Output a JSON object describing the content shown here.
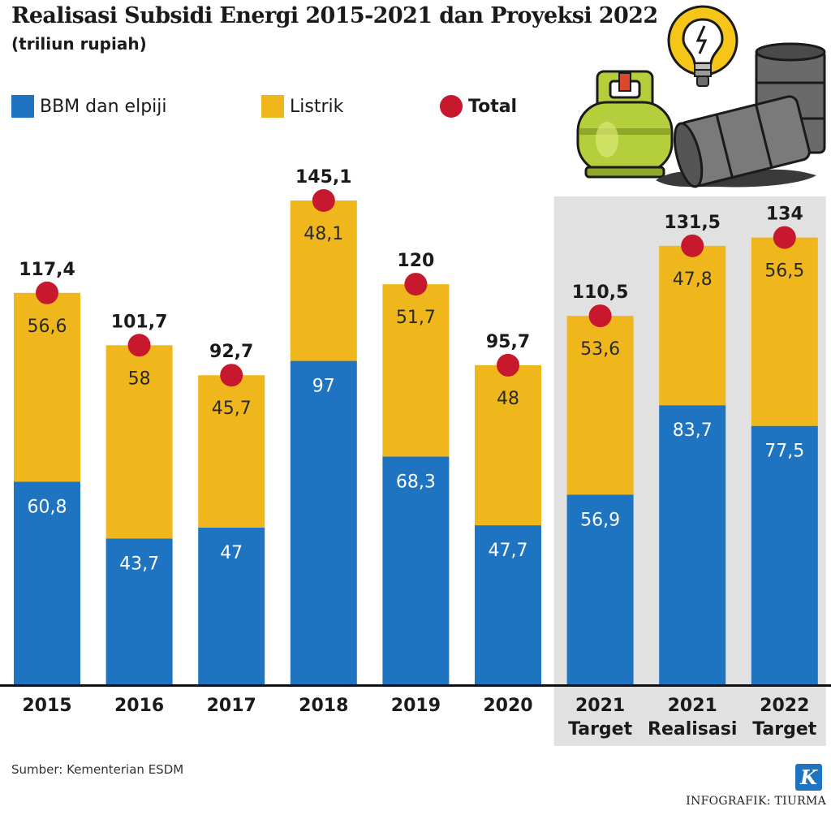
{
  "header": {
    "title": "Realisasi Subsidi Energi 2015-2021 dan Proyeksi 2022",
    "subtitle": "(triliun rupiah)"
  },
  "legend": {
    "bbm": "BBM dan elpiji",
    "listrik": "Listrik",
    "total": "Total"
  },
  "colors": {
    "bbm": "#1f74c1",
    "listrik": "#f0b71c",
    "total": "#c8182d",
    "highlight_bg": "#e1e1e1",
    "axis": "#111111"
  },
  "footer": {
    "source": "Sumber: Kementerian ESDM",
    "credit": "INFOGRAFIK: TIURMA",
    "logo_letter": "K"
  },
  "illustration": {
    "icons": [
      "gas-cylinder-icon",
      "light-bulb-icon",
      "oil-barrel-icon"
    ]
  },
  "chart_data": {
    "type": "bar",
    "stacked": true,
    "categories": [
      [
        "2015"
      ],
      [
        "2016"
      ],
      [
        "2017"
      ],
      [
        "2018"
      ],
      [
        "2019"
      ],
      [
        "2020"
      ],
      [
        "2021",
        "Target"
      ],
      [
        "2021",
        "Realisasi"
      ],
      [
        "2022",
        "Target"
      ]
    ],
    "series": [
      {
        "name": "BBM dan elpiji",
        "values": [
          60.8,
          43.7,
          47,
          97,
          68.3,
          47.7,
          56.9,
          83.7,
          77.5
        ],
        "labels": [
          "60,8",
          "43,7",
          "47",
          "97",
          "68,3",
          "47,7",
          "56,9",
          "83,7",
          "77,5"
        ]
      },
      {
        "name": "Listrik",
        "values": [
          56.6,
          58,
          45.7,
          48.1,
          51.7,
          48,
          53.6,
          47.8,
          56.5
        ],
        "labels": [
          "56,6",
          "58",
          "45,7",
          "48,1",
          "51,7",
          "48",
          "53,6",
          "47,8",
          "56,5"
        ]
      }
    ],
    "totals": {
      "name": "Total",
      "values": [
        117.4,
        101.7,
        92.7,
        145.1,
        120,
        95.7,
        110.5,
        131.5,
        134
      ],
      "labels": [
        "117,4",
        "101,7",
        "92,7",
        "145,1",
        "120",
        "95,7",
        "110,5",
        "131,5",
        "134"
      ]
    },
    "highlighted_categories": [
      6,
      7,
      8
    ],
    "title": "Realisasi Subsidi Energi 2015-2021 dan Proyeksi 2022",
    "ylabel": "triliun rupiah",
    "xlabel": "",
    "ylim": [
      0,
      145.1
    ],
    "grid": false,
    "legend_position": "top-left"
  }
}
